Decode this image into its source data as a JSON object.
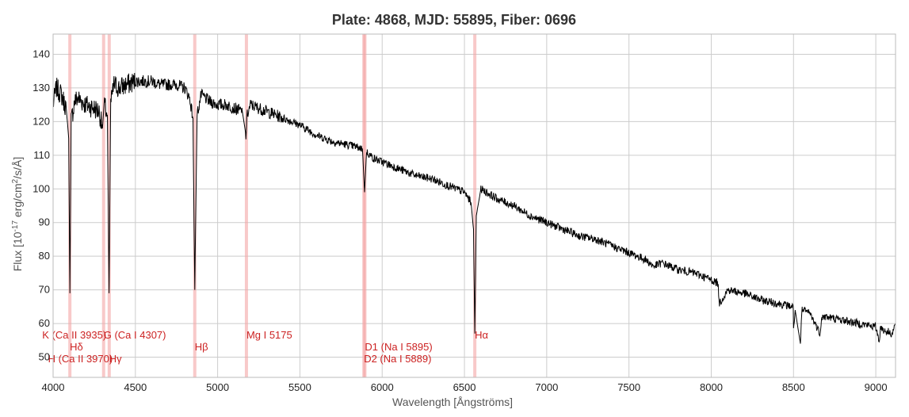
{
  "chart_data": {
    "type": "line",
    "title": "Plate: 4868, MJD: 55895, Fiber: 0696",
    "xlabel": "Wavelength [Ångströms]",
    "ylabel_main": "Flux [10",
    "ylabel_exp": "-17",
    "ylabel_mid": " erg/cm",
    "ylabel_exp2": "2",
    "ylabel_end": "/s/Å]",
    "xlim": [
      4000,
      9120
    ],
    "ylim": [
      44,
      146
    ],
    "grid": true,
    "xticks": [
      4000,
      4500,
      5000,
      5500,
      6000,
      6500,
      7000,
      7500,
      8000,
      8500,
      9000
    ],
    "yticks": [
      50,
      60,
      70,
      80,
      90,
      100,
      110,
      120,
      130,
      140
    ],
    "series": [
      {
        "color": "#000000",
        "x": [
          4000,
          4020,
          4050,
          4080,
          4095,
          4102,
          4110,
          4130,
          4150,
          4200,
          4250,
          4280,
          4300,
          4310,
          4330,
          4340,
          4350,
          4370,
          4400,
          4450,
          4500,
          4550,
          4600,
          4650,
          4700,
          4750,
          4800,
          4830,
          4850,
          4861,
          4875,
          4900,
          4950,
          5000,
          5050,
          5100,
          5150,
          5172,
          5180,
          5200,
          5250,
          5300,
          5400,
          5500,
          5600,
          5700,
          5800,
          5880,
          5893,
          5905,
          5950,
          6000,
          6100,
          6200,
          6300,
          6400,
          6500,
          6540,
          6555,
          6563,
          6572,
          6600,
          6700,
          6800,
          6900,
          7000,
          7100,
          7200,
          7300,
          7400,
          7500,
          7600,
          7650,
          7700,
          7800,
          7900,
          8000,
          8040,
          8050,
          8100,
          8200,
          8300,
          8400,
          8498,
          8500,
          8510,
          8542,
          8550,
          8600,
          8662,
          8670,
          8700,
          8800,
          8900,
          9000,
          9020,
          9030,
          9050,
          9100,
          9120
        ],
        "y": [
          125,
          130,
          128,
          124,
          115,
          69,
          120,
          126,
          127,
          125,
          124,
          123,
          118,
          125,
          122,
          69,
          125,
          131,
          130,
          131,
          132,
          132,
          132,
          131,
          131,
          131,
          130,
          127,
          121,
          70,
          122,
          128,
          126,
          125,
          125,
          124,
          123,
          116,
          122,
          125,
          124,
          123,
          121,
          119,
          116,
          114,
          113,
          112,
          99,
          111,
          109,
          108,
          106,
          104,
          103,
          101,
          99,
          96,
          88,
          57,
          92,
          100,
          97,
          95,
          92,
          90,
          88,
          86,
          85,
          83,
          81,
          79,
          77,
          78,
          76,
          75,
          73,
          72,
          66,
          70,
          69,
          67,
          66,
          65,
          58,
          64,
          54,
          64,
          63,
          57,
          62,
          62,
          61,
          60,
          59,
          55,
          59,
          58,
          57,
          60
        ]
      }
    ],
    "lines": [
      {
        "wavelength": 3934,
        "label": "K (Ca II 3935)",
        "row": 1
      },
      {
        "wavelength": 3969,
        "label": "H (Ca II 3970)",
        "row": 3
      },
      {
        "wavelength": 4102,
        "label": "Hδ",
        "row": 2
      },
      {
        "wavelength": 4307,
        "label": "G (Ca I 4307)",
        "row": 1
      },
      {
        "wavelength": 4341,
        "label": "Hγ",
        "row": 3
      },
      {
        "wavelength": 4861,
        "label": "Hβ",
        "row": 2
      },
      {
        "wavelength": 5175,
        "label": "Mg I 5175",
        "row": 1
      },
      {
        "wavelength": 5889,
        "label": "D2 (Na I 5889)",
        "row": 3
      },
      {
        "wavelength": 5895,
        "label": "D1 (Na I 5895)",
        "row": 2
      },
      {
        "wavelength": 6563,
        "label": "Hα",
        "row": 1
      }
    ]
  }
}
